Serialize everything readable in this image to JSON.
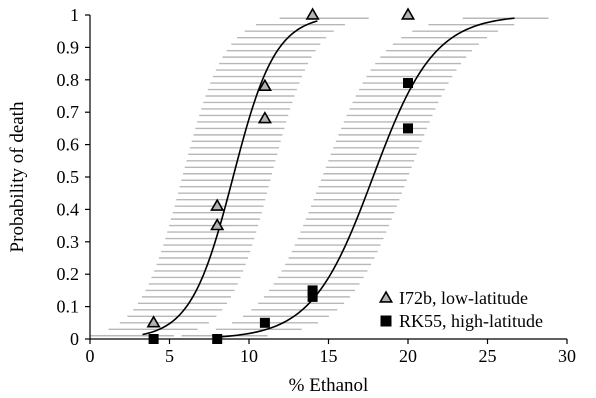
{
  "chart_data": {
    "type": "scatter",
    "title": "",
    "xlabel": "% Ethanol",
    "ylabel": "Probability of death",
    "xlim": [
      0,
      30
    ],
    "ylim": [
      0,
      1
    ],
    "x_ticks": [
      "0",
      "5",
      "10",
      "15",
      "20",
      "25",
      "30"
    ],
    "y_ticks": [
      "0",
      "0.1",
      "0.2",
      "0.3",
      "0.4",
      "0.5",
      "0.6",
      "0.7",
      "0.8",
      "0.9",
      "1"
    ],
    "grid": false,
    "legend_position": "bottom-right",
    "series": [
      {
        "name": "I72b, low-latitude",
        "marker": "triangle",
        "color": "#b3b3b3",
        "points": [
          {
            "x": 4,
            "y": 0.05
          },
          {
            "x": 8,
            "y": 0.41
          },
          {
            "x": 8,
            "y": 0.35
          },
          {
            "x": 11,
            "y": 0.78
          },
          {
            "x": 11,
            "y": 0.68
          },
          {
            "x": 14,
            "y": 1.0
          },
          {
            "x": 20,
            "y": 1.0
          }
        ],
        "fit_curve": {
          "model": "logistic",
          "midpoint": 9,
          "slope": 0.75,
          "x_range": [
            3.3,
            14.3
          ]
        },
        "ci_band": {
          "x_half_width_lower": 3.2,
          "x_half_width_upper": 2.4
        }
      },
      {
        "name": "RK55, high-latitude",
        "marker": "square",
        "color": "#000000",
        "points": [
          {
            "x": 4,
            "y": 0.0
          },
          {
            "x": 8,
            "y": 0.0
          },
          {
            "x": 11,
            "y": 0.05
          },
          {
            "x": 14,
            "y": 0.15
          },
          {
            "x": 14,
            "y": 0.13
          },
          {
            "x": 20,
            "y": 0.79
          },
          {
            "x": 20,
            "y": 0.65
          }
        ],
        "fit_curve": {
          "model": "logistic",
          "midpoint": 17.8,
          "slope": 0.52,
          "x_range": [
            8,
            26.7
          ]
        },
        "ci_band": {
          "x_half_width_lower": 3.2,
          "x_half_width_upper": 2.2
        }
      }
    ]
  }
}
